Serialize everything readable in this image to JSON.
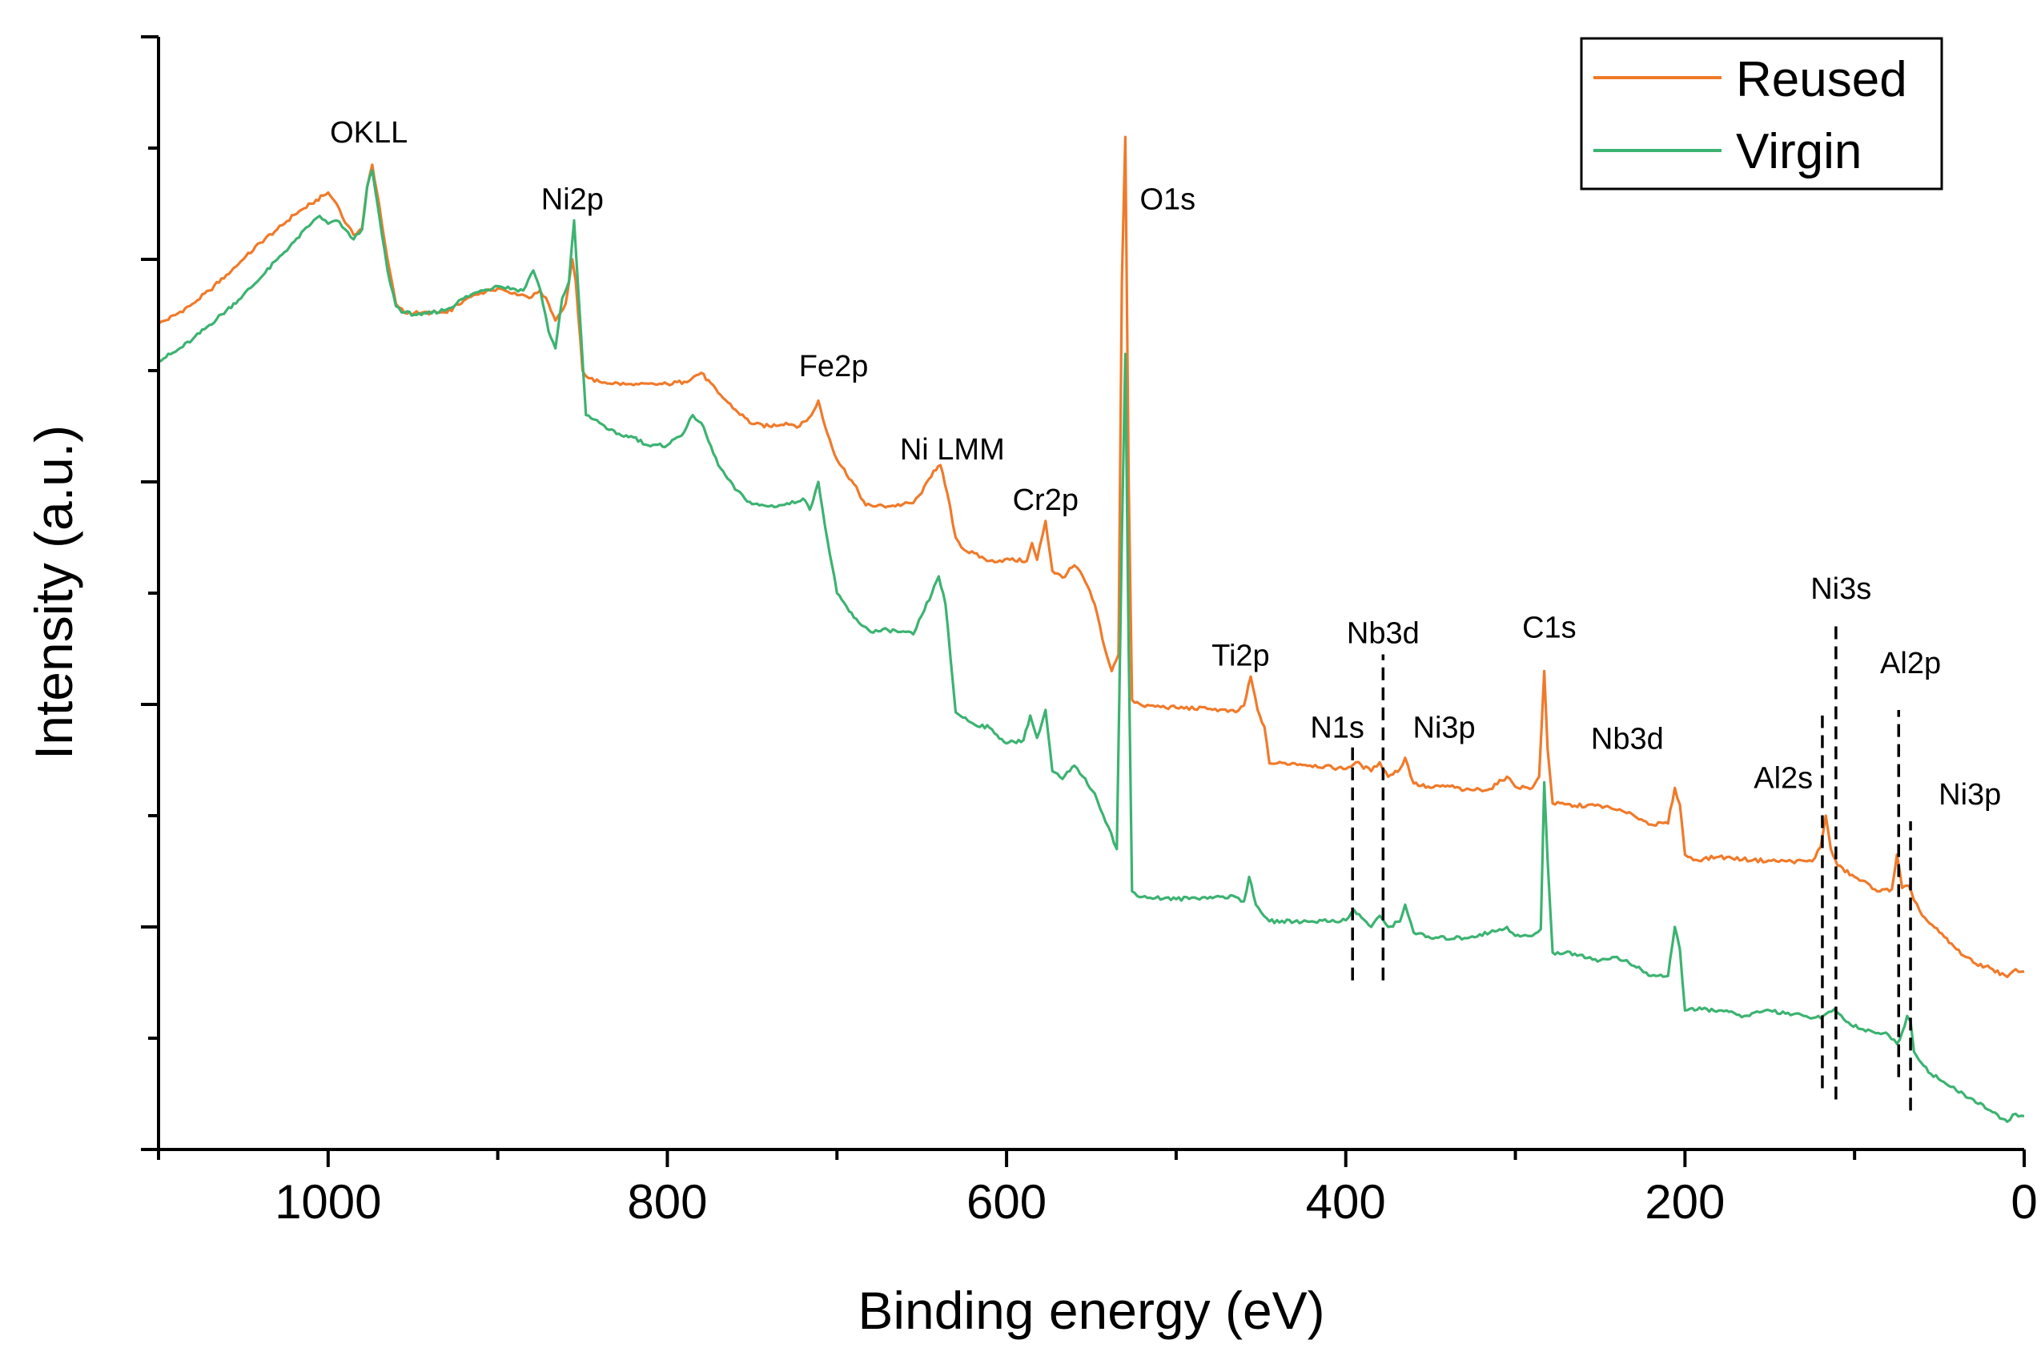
{
  "chart_data": {
    "type": "line",
    "title": "",
    "xlabel": "Binding energy (eV)",
    "ylabel": "Intensity (a.u.)",
    "xlim": [
      1100,
      0
    ],
    "ylim": [
      0,
      100
    ],
    "x_ticks": [
      "1000",
      "800",
      "600",
      "400",
      "200",
      "0"
    ],
    "x_tick_values": [
      1000,
      800,
      600,
      400,
      200,
      0
    ],
    "grid": false,
    "legend_position": "top-right",
    "series": [
      {
        "name": "Reused",
        "color": "#F07A2A",
        "points": [
          [
            1100,
            74.2
          ],
          [
            1090,
            75.0
          ],
          [
            1080,
            76.0
          ],
          [
            1070,
            77.2
          ],
          [
            1060,
            78.6
          ],
          [
            1050,
            80.0
          ],
          [
            1040,
            81.5
          ],
          [
            1030,
            82.7
          ],
          [
            1020,
            84.0
          ],
          [
            1010,
            85.0
          ],
          [
            1000,
            86.0
          ],
          [
            995,
            85.0
          ],
          [
            990,
            83.3
          ],
          [
            985,
            82.2
          ],
          [
            980,
            82.8
          ],
          [
            977,
            86.5
          ],
          [
            974,
            88.5
          ],
          [
            970,
            85.0
          ],
          [
            965,
            80.0
          ],
          [
            960,
            76.0
          ],
          [
            955,
            75.2
          ],
          [
            945,
            75.2
          ],
          [
            930,
            75.2
          ],
          [
            920,
            76.3
          ],
          [
            910,
            77.0
          ],
          [
            900,
            77.4
          ],
          [
            890,
            77.0
          ],
          [
            880,
            76.6
          ],
          [
            875,
            77.2
          ],
          [
            870,
            76.0
          ],
          [
            866,
            74.5
          ],
          [
            860,
            76.0
          ],
          [
            856,
            80.0
          ],
          [
            854,
            78.0
          ],
          [
            850,
            70.0
          ],
          [
            846,
            69.3
          ],
          [
            840,
            69.0
          ],
          [
            820,
            68.7
          ],
          [
            800,
            68.8
          ],
          [
            790,
            69.0
          ],
          [
            780,
            69.8
          ],
          [
            770,
            68.0
          ],
          [
            760,
            66.5
          ],
          [
            750,
            65.2
          ],
          [
            740,
            65.0
          ],
          [
            730,
            65.3
          ],
          [
            722,
            65.0
          ],
          [
            715,
            66.0
          ],
          [
            711,
            67.3
          ],
          [
            707,
            65.0
          ],
          [
            700,
            62.0
          ],
          [
            690,
            59.8
          ],
          [
            683,
            57.9
          ],
          [
            670,
            57.8
          ],
          [
            655,
            58.1
          ],
          [
            650,
            59.0
          ],
          [
            643,
            61.0
          ],
          [
            639,
            61.5
          ],
          [
            635,
            59.0
          ],
          [
            630,
            55.0
          ],
          [
            625,
            53.9
          ],
          [
            610,
            52.9
          ],
          [
            598,
            53.0
          ],
          [
            588,
            52.9
          ],
          [
            585,
            54.5
          ],
          [
            582,
            53.0
          ],
          [
            577,
            56.5
          ],
          [
            573,
            52.0
          ],
          [
            567,
            51.4
          ],
          [
            560,
            52.5
          ],
          [
            555,
            51.5
          ],
          [
            548,
            49.0
          ],
          [
            542,
            45.0
          ],
          [
            538,
            43.0
          ],
          [
            534,
            44.5
          ],
          [
            532,
            78.0
          ],
          [
            530,
            91.0
          ],
          [
            528,
            60.0
          ],
          [
            526,
            40.4
          ],
          [
            520,
            39.9
          ],
          [
            500,
            39.7
          ],
          [
            480,
            39.6
          ],
          [
            465,
            39.3
          ],
          [
            460,
            39.9
          ],
          [
            456,
            42.5
          ],
          [
            452,
            39.5
          ],
          [
            448,
            38.0
          ],
          [
            445,
            34.7
          ],
          [
            430,
            34.7
          ],
          [
            400,
            34.2
          ],
          [
            394,
            34.8
          ],
          [
            385,
            34.0
          ],
          [
            380,
            34.8
          ],
          [
            375,
            33.5
          ],
          [
            368,
            34.2
          ],
          [
            365,
            35.2
          ],
          [
            360,
            32.9
          ],
          [
            350,
            32.5
          ],
          [
            340,
            32.7
          ],
          [
            330,
            32.3
          ],
          [
            315,
            32.4
          ],
          [
            305,
            33.5
          ],
          [
            300,
            32.6
          ],
          [
            290,
            32.5
          ],
          [
            286,
            33.5
          ],
          [
            283,
            43.0
          ],
          [
            281,
            36.0
          ],
          [
            278,
            31.1
          ],
          [
            265,
            30.9
          ],
          [
            250,
            30.9
          ],
          [
            240,
            30.5
          ],
          [
            230,
            30.0
          ],
          [
            220,
            29.2
          ],
          [
            210,
            29.3
          ],
          [
            206,
            32.5
          ],
          [
            203,
            31.0
          ],
          [
            200,
            26.5
          ],
          [
            195,
            26.0
          ],
          [
            180,
            26.3
          ],
          [
            160,
            26.0
          ],
          [
            140,
            25.9
          ],
          [
            125,
            25.9
          ],
          [
            120,
            27.2
          ],
          [
            117,
            30.0
          ],
          [
            114,
            27.0
          ],
          [
            110,
            25.5
          ],
          [
            100,
            24.5
          ],
          [
            85,
            23.2
          ],
          [
            78,
            23.4
          ],
          [
            75,
            26.5
          ],
          [
            72,
            23.5
          ],
          [
            68,
            23.7
          ],
          [
            65,
            22.4
          ],
          [
            60,
            21.0
          ],
          [
            50,
            19.5
          ],
          [
            40,
            18.0
          ],
          [
            30,
            16.8
          ],
          [
            20,
            16.3
          ],
          [
            10,
            15.5
          ],
          [
            5,
            16.2
          ],
          [
            0,
            16.0
          ]
        ]
      },
      {
        "name": "Virgin",
        "color": "#3CB371",
        "points": [
          [
            1100,
            70.9
          ],
          [
            1090,
            71.7
          ],
          [
            1080,
            72.8
          ],
          [
            1070,
            74.1
          ],
          [
            1060,
            75.4
          ],
          [
            1050,
            76.8
          ],
          [
            1040,
            78.3
          ],
          [
            1030,
            80.0
          ],
          [
            1020,
            81.6
          ],
          [
            1010,
            83.2
          ],
          [
            1005,
            83.9
          ],
          [
            1000,
            83.2
          ],
          [
            995,
            83.5
          ],
          [
            990,
            82.7
          ],
          [
            985,
            81.8
          ],
          [
            980,
            82.7
          ],
          [
            977,
            86.5
          ],
          [
            974,
            88.0
          ],
          [
            970,
            84.0
          ],
          [
            965,
            79.0
          ],
          [
            960,
            75.8
          ],
          [
            955,
            75.2
          ],
          [
            945,
            75.0
          ],
          [
            930,
            75.5
          ],
          [
            920,
            76.5
          ],
          [
            910,
            77.2
          ],
          [
            900,
            77.6
          ],
          [
            885,
            77.2
          ],
          [
            879,
            79.0
          ],
          [
            875,
            77.3
          ],
          [
            870,
            73.5
          ],
          [
            866,
            72.0
          ],
          [
            862,
            76.5
          ],
          [
            858,
            78.0
          ],
          [
            855,
            83.5
          ],
          [
            852,
            76.0
          ],
          [
            848,
            66.0
          ],
          [
            840,
            65.3
          ],
          [
            830,
            64.3
          ],
          [
            820,
            64.0
          ],
          [
            810,
            63.2
          ],
          [
            800,
            63.3
          ],
          [
            790,
            64.5
          ],
          [
            785,
            66.0
          ],
          [
            780,
            65.3
          ],
          [
            770,
            61.5
          ],
          [
            760,
            59.3
          ],
          [
            750,
            58.0
          ],
          [
            740,
            57.8
          ],
          [
            728,
            58.0
          ],
          [
            720,
            58.5
          ],
          [
            716,
            57.5
          ],
          [
            711,
            60.0
          ],
          [
            707,
            56.0
          ],
          [
            700,
            50.0
          ],
          [
            690,
            47.8
          ],
          [
            680,
            46.5
          ],
          [
            670,
            46.7
          ],
          [
            655,
            46.3
          ],
          [
            650,
            48.0
          ],
          [
            644,
            50.0
          ],
          [
            640,
            51.5
          ],
          [
            636,
            49.0
          ],
          [
            630,
            39.3
          ],
          [
            620,
            38.3
          ],
          [
            610,
            37.9
          ],
          [
            600,
            36.5
          ],
          [
            590,
            36.8
          ],
          [
            586,
            39.0
          ],
          [
            582,
            37.0
          ],
          [
            577,
            39.5
          ],
          [
            573,
            34.0
          ],
          [
            567,
            33.3
          ],
          [
            560,
            34.5
          ],
          [
            555,
            33.5
          ],
          [
            548,
            32.0
          ],
          [
            540,
            29.0
          ],
          [
            535,
            27.0
          ],
          [
            532,
            55.0
          ],
          [
            530,
            71.5
          ],
          [
            528,
            45.0
          ],
          [
            526,
            23.2
          ],
          [
            520,
            22.7
          ],
          [
            500,
            22.5
          ],
          [
            480,
            22.7
          ],
          [
            465,
            22.7
          ],
          [
            460,
            22.3
          ],
          [
            457,
            24.5
          ],
          [
            453,
            22.0
          ],
          [
            445,
            20.5
          ],
          [
            420,
            20.5
          ],
          [
            400,
            20.6
          ],
          [
            395,
            21.5
          ],
          [
            385,
            20.0
          ],
          [
            380,
            21.0
          ],
          [
            375,
            20.0
          ],
          [
            368,
            20.5
          ],
          [
            365,
            22.0
          ],
          [
            360,
            19.5
          ],
          [
            350,
            19.0
          ],
          [
            330,
            19.0
          ],
          [
            315,
            19.5
          ],
          [
            305,
            20.0
          ],
          [
            300,
            19.2
          ],
          [
            290,
            19.2
          ],
          [
            285,
            19.8
          ],
          [
            283,
            33.0
          ],
          [
            281,
            26.0
          ],
          [
            278,
            17.7
          ],
          [
            265,
            17.6
          ],
          [
            250,
            17.0
          ],
          [
            240,
            17.3
          ],
          [
            230,
            16.5
          ],
          [
            220,
            15.6
          ],
          [
            210,
            15.6
          ],
          [
            206,
            20.0
          ],
          [
            203,
            18.0
          ],
          [
            200,
            12.5
          ],
          [
            190,
            12.6
          ],
          [
            180,
            12.5
          ],
          [
            165,
            12.0
          ],
          [
            150,
            12.5
          ],
          [
            130,
            12.0
          ],
          [
            120,
            11.8
          ],
          [
            112,
            12.6
          ],
          [
            105,
            11.5
          ],
          [
            95,
            10.8
          ],
          [
            80,
            10.3
          ],
          [
            75,
            9.5
          ],
          [
            72,
            10.5
          ],
          [
            69,
            12.0
          ],
          [
            67,
            11.5
          ],
          [
            65,
            8.8
          ],
          [
            55,
            6.8
          ],
          [
            40,
            5.3
          ],
          [
            30,
            4.5
          ],
          [
            20,
            3.5
          ],
          [
            10,
            2.5
          ],
          [
            5,
            3.2
          ],
          [
            0,
            3.0
          ]
        ]
      }
    ],
    "annotations": [
      {
        "text": "OKLL",
        "x": 976,
        "y": 90.5,
        "anchor": "middle"
      },
      {
        "text": "Ni2p",
        "x": 856,
        "y": 84.5,
        "anchor": "middle"
      },
      {
        "text": "O1s",
        "x": 505,
        "y": 84.5,
        "anchor": "middle"
      },
      {
        "text": "Fe2p",
        "x": 702,
        "y": 69.5,
        "anchor": "middle"
      },
      {
        "text": "Ni LMM",
        "x": 632,
        "y": 62.0,
        "anchor": "middle"
      },
      {
        "text": "Cr2p",
        "x": 577,
        "y": 57.5,
        "anchor": "middle"
      },
      {
        "text": "Ti2p",
        "x": 462,
        "y": 43.5,
        "anchor": "middle"
      },
      {
        "text": "Nb3d",
        "x": 378,
        "y": 45.5,
        "anchor": "middle"
      },
      {
        "text": "N1s",
        "x": 405,
        "y": 37.0,
        "anchor": "middle"
      },
      {
        "text": "Ni3p",
        "x": 342,
        "y": 37.0,
        "anchor": "middle"
      },
      {
        "text": "C1s",
        "x": 280,
        "y": 46.0,
        "anchor": "middle"
      },
      {
        "text": "Nb3d",
        "x": 234,
        "y": 36.0,
        "anchor": "middle"
      },
      {
        "text": "Ni3s",
        "x": 108,
        "y": 49.5,
        "anchor": "middle"
      },
      {
        "text": "Al2p",
        "x": 67,
        "y": 42.8,
        "anchor": "middle"
      },
      {
        "text": "Al2s",
        "x": 142,
        "y": 32.5,
        "anchor": "middle"
      },
      {
        "text": "Ni3p",
        "x": 32,
        "y": 31.0,
        "anchor": "middle"
      }
    ],
    "reference_lines": [
      {
        "x": 396,
        "y_from": 15.2,
        "y_to": 36.5
      },
      {
        "x": 378,
        "y_from": 15.2,
        "y_to": 44.5
      },
      {
        "x": 119,
        "y_from": 5.5,
        "y_to": 39.0
      },
      {
        "x": 111,
        "y_from": 4.5,
        "y_to": 47.5
      },
      {
        "x": 74,
        "y_from": 6.5,
        "y_to": 39.5
      },
      {
        "x": 67,
        "y_from": 3.5,
        "y_to": 29.5
      }
    ]
  }
}
